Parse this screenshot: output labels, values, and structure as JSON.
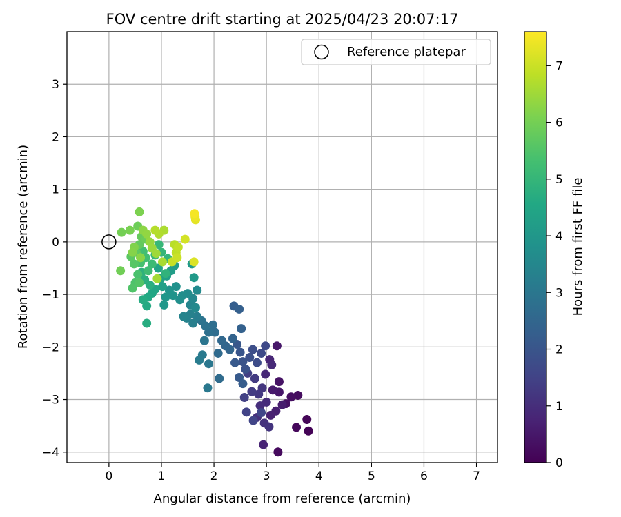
{
  "chart_data": {
    "type": "scatter",
    "title": "FOV centre drift starting at 2025/04/23 20:07:17",
    "xlabel": "Angular distance from reference (arcmin)",
    "ylabel": "Rotation from reference (arcmin)",
    "xlim": [
      -0.8,
      7.4
    ],
    "ylim": [
      -4.2,
      4.0
    ],
    "xticks": [
      0,
      1,
      2,
      3,
      4,
      5,
      6,
      7
    ],
    "yticks": [
      -4,
      -3,
      -2,
      -1,
      0,
      1,
      2,
      3
    ],
    "grid": true,
    "legend": {
      "position": "top-right",
      "entries": [
        "Reference platepar"
      ]
    },
    "reference_point": {
      "x": 0,
      "y": 0
    },
    "colorbar": {
      "label": "Hours from first FF file",
      "range": [
        0,
        7.6
      ],
      "ticks": [
        0,
        1,
        2,
        3,
        4,
        5,
        6,
        7
      ],
      "colormap": "viridis"
    },
    "points": [
      [
        3.8,
        -3.6,
        0.05
      ],
      [
        3.77,
        -3.38,
        0.1
      ],
      [
        3.57,
        -3.53,
        0.15
      ],
      [
        3.22,
        -4.0,
        0.2
      ],
      [
        3.6,
        -2.92,
        0.25
      ],
      [
        3.47,
        -2.95,
        0.3
      ],
      [
        3.37,
        -3.08,
        0.35
      ],
      [
        3.24,
        -2.66,
        0.4
      ],
      [
        3.24,
        -2.86,
        0.45
      ],
      [
        3.2,
        -1.98,
        0.5
      ],
      [
        3.12,
        -2.82,
        0.55
      ],
      [
        3.3,
        -3.1,
        0.6
      ],
      [
        3.18,
        -3.22,
        0.65
      ],
      [
        3.08,
        -3.3,
        0.7
      ],
      [
        2.94,
        -3.86,
        0.75
      ],
      [
        3.06,
        -2.24,
        0.8
      ],
      [
        2.98,
        -2.52,
        0.85
      ],
      [
        3.1,
        -2.34,
        0.9
      ],
      [
        3.0,
        -3.05,
        0.95
      ],
      [
        2.88,
        -3.12,
        1.0
      ],
      [
        2.82,
        -3.34,
        1.05
      ],
      [
        2.96,
        -3.45,
        1.1
      ],
      [
        3.05,
        -3.52,
        1.15
      ],
      [
        2.92,
        -2.78,
        1.2
      ],
      [
        2.85,
        -2.9,
        1.25
      ],
      [
        2.78,
        -2.6,
        1.3
      ],
      [
        2.72,
        -2.85,
        1.35
      ],
      [
        2.64,
        -2.5,
        1.4
      ],
      [
        2.58,
        -2.96,
        1.45
      ],
      [
        2.62,
        -3.24,
        1.5
      ],
      [
        2.75,
        -3.4,
        1.55
      ],
      [
        2.9,
        -3.25,
        1.6
      ],
      [
        2.98,
        -1.98,
        1.65
      ],
      [
        2.9,
        -2.12,
        1.7
      ],
      [
        2.82,
        -2.3,
        1.75
      ],
      [
        2.74,
        -2.05,
        1.8
      ],
      [
        2.68,
        -2.2,
        1.85
      ],
      [
        2.6,
        -2.42,
        1.9
      ],
      [
        2.55,
        -2.28,
        1.95
      ],
      [
        2.5,
        -2.1,
        2.0
      ],
      [
        2.44,
        -1.95,
        2.05
      ],
      [
        2.4,
        -2.3,
        2.1
      ],
      [
        2.48,
        -2.58,
        2.15
      ],
      [
        2.55,
        -2.7,
        2.2
      ],
      [
        2.38,
        -1.22,
        2.25
      ],
      [
        2.48,
        -1.28,
        2.3
      ],
      [
        2.52,
        -1.65,
        2.35
      ],
      [
        2.36,
        -1.84,
        2.4
      ],
      [
        2.3,
        -2.05,
        2.45
      ],
      [
        2.22,
        -1.98,
        2.5
      ],
      [
        2.15,
        -1.88,
        2.55
      ],
      [
        2.08,
        -2.12,
        2.6
      ],
      [
        2.1,
        -2.6,
        2.65
      ],
      [
        2.02,
        -1.72,
        2.7
      ],
      [
        1.98,
        -1.58,
        2.75
      ],
      [
        1.9,
        -1.72,
        2.8
      ],
      [
        1.84,
        -1.6,
        2.85
      ],
      [
        1.76,
        -1.5,
        2.9
      ],
      [
        1.82,
        -1.88,
        2.95
      ],
      [
        1.9,
        -2.32,
        3.0
      ],
      [
        1.88,
        -2.78,
        3.05
      ],
      [
        1.78,
        -2.15,
        3.1
      ],
      [
        1.72,
        -2.25,
        3.15
      ],
      [
        1.68,
        -1.42,
        3.2
      ],
      [
        1.6,
        -1.55,
        3.25
      ],
      [
        1.55,
        -1.38,
        3.3
      ],
      [
        1.48,
        -1.45,
        3.35
      ],
      [
        1.42,
        -1.42,
        3.4
      ],
      [
        1.55,
        -1.2,
        3.45
      ],
      [
        1.6,
        -1.08,
        3.5
      ],
      [
        1.65,
        -1.25,
        3.55
      ],
      [
        1.68,
        -0.92,
        3.6
      ],
      [
        1.5,
        -0.98,
        3.65
      ],
      [
        1.4,
        -1.02,
        3.7
      ],
      [
        1.35,
        -1.1,
        3.75
      ],
      [
        1.28,
        -0.85,
        3.8
      ],
      [
        1.22,
        -1.02,
        3.85
      ],
      [
        1.15,
        -0.92,
        3.9
      ],
      [
        1.08,
        -1.05,
        3.95
      ],
      [
        1.05,
        -1.2,
        4.0
      ],
      [
        1.62,
        -0.68,
        4.05
      ],
      [
        1.58,
        -0.42,
        4.1
      ],
      [
        1.25,
        -0.45,
        4.15
      ],
      [
        1.18,
        -0.55,
        4.2
      ],
      [
        1.1,
        -0.65,
        4.25
      ],
      [
        1.02,
        -0.85,
        4.3
      ],
      [
        0.98,
        -0.7,
        4.35
      ],
      [
        0.94,
        -0.5,
        4.4
      ],
      [
        0.88,
        -0.9,
        4.45
      ],
      [
        0.82,
        -0.98,
        4.5
      ],
      [
        0.75,
        -1.05,
        4.55
      ],
      [
        0.72,
        -1.22,
        4.6
      ],
      [
        0.65,
        -1.1,
        4.65
      ],
      [
        0.72,
        -1.55,
        4.7
      ],
      [
        0.78,
        -0.82,
        4.75
      ],
      [
        0.68,
        -0.72,
        4.8
      ],
      [
        0.62,
        -0.58,
        4.85
      ],
      [
        1.08,
        -0.6,
        4.9
      ],
      [
        1.12,
        -0.32,
        4.95
      ],
      [
        1.0,
        -0.2,
        5.0
      ],
      [
        0.95,
        -0.05,
        5.05
      ],
      [
        0.88,
        -0.25,
        5.1
      ],
      [
        0.82,
        -0.42,
        5.15
      ],
      [
        0.75,
        -0.55,
        5.2
      ],
      [
        0.7,
        -0.3,
        5.25
      ],
      [
        0.65,
        -0.18,
        5.3
      ],
      [
        0.6,
        -0.4,
        5.35
      ],
      [
        0.55,
        -0.62,
        5.4
      ],
      [
        0.5,
        -0.78,
        5.45
      ],
      [
        0.45,
        -0.88,
        5.5
      ],
      [
        0.58,
        -0.78,
        5.55
      ],
      [
        0.48,
        -0.42,
        5.6
      ],
      [
        0.42,
        -0.28,
        5.65
      ],
      [
        0.52,
        -0.2,
        5.7
      ],
      [
        0.58,
        -0.05,
        5.75
      ],
      [
        0.62,
        0.1,
        5.8
      ],
      [
        0.7,
        0.05,
        5.85
      ],
      [
        0.55,
        0.3,
        5.9
      ],
      [
        0.22,
        -0.55,
        5.95
      ],
      [
        0.24,
        0.18,
        6.0
      ],
      [
        0.4,
        0.22,
        6.05
      ],
      [
        0.58,
        0.57,
        6.1
      ],
      [
        0.48,
        -0.1,
        6.15
      ],
      [
        0.45,
        -0.2,
        6.2
      ],
      [
        0.6,
        -0.3,
        6.25
      ],
      [
        0.65,
        0.22,
        6.3
      ],
      [
        0.72,
        0.15,
        6.35
      ],
      [
        0.78,
        0.0,
        6.4
      ],
      [
        0.82,
        -0.12,
        6.45
      ],
      [
        0.9,
        -0.22,
        6.5
      ],
      [
        0.92,
        -0.7,
        6.55
      ],
      [
        1.02,
        -0.38,
        6.6
      ],
      [
        1.05,
        0.22,
        6.65
      ],
      [
        0.95,
        0.15,
        6.7
      ],
      [
        0.88,
        0.22,
        6.75
      ],
      [
        1.25,
        -0.05,
        6.8
      ],
      [
        1.28,
        -0.2,
        6.85
      ],
      [
        1.32,
        -0.1,
        6.9
      ],
      [
        1.2,
        -0.38,
        6.95
      ],
      [
        1.3,
        -0.3,
        7.0
      ],
      [
        1.45,
        0.05,
        7.1
      ],
      [
        1.62,
        -0.38,
        7.2
      ],
      [
        1.65,
        0.42,
        7.3
      ],
      [
        1.64,
        0.48,
        7.4
      ],
      [
        1.63,
        0.54,
        7.5
      ]
    ]
  }
}
